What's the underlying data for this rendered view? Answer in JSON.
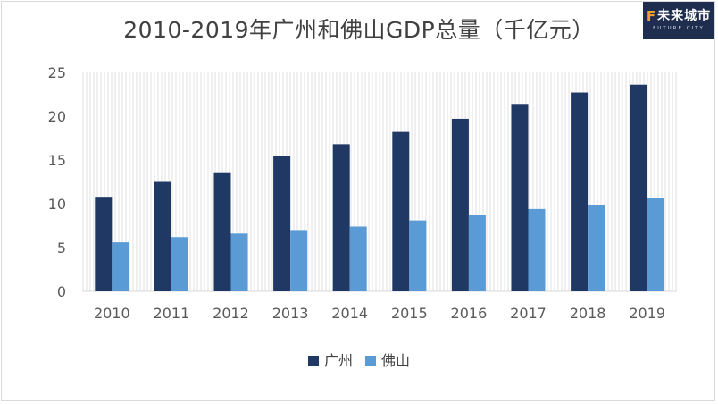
{
  "logo": {
    "mark": "F",
    "text": "未来城市",
    "sub": "FUTURE CITY"
  },
  "chart_data": {
    "type": "bar",
    "title": "2010-2019年广州和佛山GDP总量（千亿元）",
    "categories": [
      "2010",
      "2011",
      "2012",
      "2013",
      "2014",
      "2015",
      "2016",
      "2017",
      "2018",
      "2019"
    ],
    "series": [
      {
        "name": "广州",
        "color": "#1f3864",
        "values": [
          10.8,
          12.5,
          13.6,
          15.5,
          16.8,
          18.2,
          19.7,
          21.4,
          22.7,
          23.6
        ]
      },
      {
        "name": "佛山",
        "color": "#5b9bd5",
        "values": [
          5.6,
          6.2,
          6.6,
          7.0,
          7.4,
          8.1,
          8.7,
          9.4,
          9.9,
          10.7
        ]
      }
    ],
    "ylim": [
      0,
      25
    ],
    "yticks": [
      0,
      5,
      10,
      15,
      20,
      25
    ],
    "legend": "bottom"
  }
}
